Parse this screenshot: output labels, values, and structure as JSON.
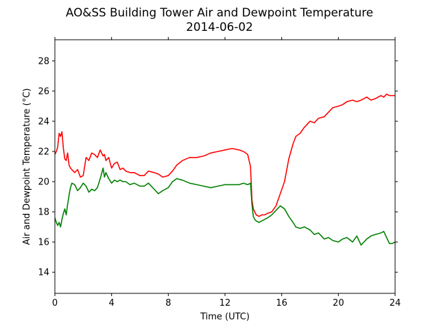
{
  "chart_data": {
    "type": "line",
    "title": "AO&SS Building Tower Air and Dewpoint Temperature",
    "subtitle": "2014-06-02",
    "xlabel": "Time (UTC)",
    "ylabel": "Air and Dewpoint Temperature (°C)",
    "xlim": [
      0,
      24
    ],
    "ylim": [
      12.6,
      29.4
    ],
    "xticks": [
      0,
      4,
      8,
      12,
      16,
      20,
      24
    ],
    "yticks": [
      14,
      16,
      18,
      20,
      22,
      24,
      26,
      28
    ],
    "grid": false,
    "legend": "none",
    "series": [
      {
        "color": "#ff0000",
        "x": [
          0,
          0.1,
          0.2,
          0.3,
          0.4,
          0.5,
          0.6,
          0.7,
          0.8,
          0.9,
          1.0,
          1.1,
          1.2,
          1.4,
          1.6,
          1.8,
          2.0,
          2.2,
          2.4,
          2.6,
          2.8,
          3.0,
          3.2,
          3.4,
          3.5,
          3.6,
          3.8,
          4.0,
          4.2,
          4.4,
          4.6,
          4.8,
          5.0,
          5.3,
          5.6,
          6.0,
          6.3,
          6.6,
          7.0,
          7.3,
          7.6,
          8.0,
          8.3,
          8.6,
          9.0,
          9.5,
          10.0,
          10.5,
          11.0,
          11.5,
          12.0,
          12.5,
          13.0,
          13.3,
          13.6,
          13.8,
          13.9,
          14.0,
          14.1,
          14.2,
          14.4,
          14.6,
          14.8,
          15.0,
          15.3,
          15.6,
          15.9,
          16.2,
          16.5,
          16.8,
          17.0,
          17.3,
          17.6,
          18.0,
          18.3,
          18.6,
          19.0,
          19.3,
          19.6,
          20.0,
          20.3,
          20.6,
          21.0,
          21.3,
          21.6,
          22.0,
          22.3,
          22.6,
          23.0,
          23.2,
          23.4,
          23.6,
          23.8,
          24.0
        ],
        "y": [
          21.8,
          22.0,
          22.3,
          23.2,
          23.0,
          23.3,
          22.2,
          21.5,
          21.4,
          21.9,
          21.1,
          20.9,
          20.8,
          20.6,
          20.8,
          20.3,
          20.4,
          21.6,
          21.4,
          21.9,
          21.8,
          21.6,
          22.1,
          21.7,
          21.8,
          21.4,
          21.6,
          20.9,
          21.2,
          21.3,
          20.8,
          20.9,
          20.7,
          20.6,
          20.6,
          20.4,
          20.4,
          20.7,
          20.6,
          20.5,
          20.3,
          20.4,
          20.7,
          21.1,
          21.4,
          21.6,
          21.6,
          21.7,
          21.9,
          22.0,
          22.1,
          22.2,
          22.1,
          22.0,
          21.8,
          21.0,
          18.8,
          18.2,
          18.0,
          17.8,
          17.7,
          17.8,
          17.8,
          17.9,
          18.0,
          18.4,
          19.2,
          20.0,
          21.5,
          22.5,
          23.0,
          23.2,
          23.6,
          24.0,
          23.9,
          24.2,
          24.3,
          24.6,
          24.9,
          25.0,
          25.1,
          25.3,
          25.4,
          25.3,
          25.4,
          25.6,
          25.4,
          25.5,
          25.7,
          25.6,
          25.8,
          25.7,
          25.7,
          25.7
        ]
      },
      {
        "color": "#008000",
        "x": [
          0,
          0.1,
          0.2,
          0.3,
          0.4,
          0.5,
          0.6,
          0.7,
          0.8,
          0.9,
          1.0,
          1.1,
          1.2,
          1.4,
          1.6,
          1.8,
          2.0,
          2.2,
          2.4,
          2.6,
          2.8,
          3.0,
          3.2,
          3.4,
          3.5,
          3.6,
          3.8,
          4.0,
          4.2,
          4.4,
          4.6,
          4.8,
          5.0,
          5.3,
          5.6,
          6.0,
          6.3,
          6.6,
          7.0,
          7.3,
          7.6,
          8.0,
          8.3,
          8.6,
          9.0,
          9.5,
          10.0,
          10.5,
          11.0,
          11.5,
          12.0,
          12.5,
          13.0,
          13.3,
          13.6,
          13.8,
          13.9,
          14.0,
          14.1,
          14.2,
          14.4,
          14.6,
          14.8,
          15.0,
          15.3,
          15.6,
          15.9,
          16.2,
          16.5,
          16.8,
          17.0,
          17.3,
          17.6,
          18.0,
          18.3,
          18.6,
          19.0,
          19.3,
          19.6,
          20.0,
          20.3,
          20.6,
          21.0,
          21.3,
          21.6,
          22.0,
          22.3,
          22.6,
          23.0,
          23.2,
          23.4,
          23.6,
          23.8,
          24.0
        ],
        "y": [
          17.6,
          17.3,
          17.1,
          17.3,
          17.0,
          17.5,
          17.9,
          18.2,
          17.8,
          18.5,
          19.1,
          19.6,
          19.9,
          19.8,
          19.4,
          19.6,
          19.9,
          19.7,
          19.3,
          19.5,
          19.4,
          19.6,
          20.2,
          20.9,
          20.3,
          20.6,
          20.2,
          19.9,
          20.1,
          20.0,
          20.1,
          20.0,
          20.0,
          19.8,
          19.9,
          19.7,
          19.7,
          19.9,
          19.5,
          19.2,
          19.4,
          19.6,
          20.0,
          20.2,
          20.1,
          19.9,
          19.8,
          19.7,
          19.6,
          19.7,
          19.8,
          19.8,
          19.8,
          19.9,
          19.8,
          19.9,
          18.5,
          17.7,
          17.5,
          17.4,
          17.3,
          17.4,
          17.5,
          17.6,
          17.8,
          18.1,
          18.4,
          18.2,
          17.7,
          17.3,
          17.0,
          16.9,
          17.0,
          16.8,
          16.5,
          16.6,
          16.2,
          16.3,
          16.1,
          16.0,
          16.2,
          16.3,
          16.0,
          16.4,
          15.8,
          16.2,
          16.4,
          16.5,
          16.6,
          16.7,
          16.3,
          15.9,
          15.9,
          16.0
        ]
      }
    ]
  }
}
